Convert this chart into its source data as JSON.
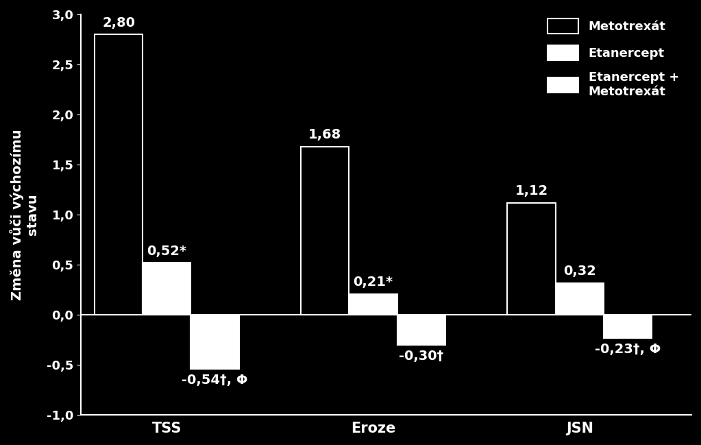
{
  "categories": [
    "TSS",
    "Eroze",
    "JSN"
  ],
  "metotrexat": [
    2.8,
    1.68,
    1.12
  ],
  "etanercept": [
    0.52,
    0.21,
    0.32
  ],
  "etanercept_plus": [
    -0.54,
    -0.3,
    -0.23
  ],
  "metotrexat_labels": [
    "2,80",
    "1,68",
    "1,12"
  ],
  "etanercept_labels": [
    "0,52*",
    "0,21*",
    "0,32"
  ],
  "etanercept_plus_labels": [
    "-0,54†, Φ",
    "-0,30†",
    "-0,23†, Φ"
  ],
  "ylabel": "Změna vůči výchozímu\nstavu",
  "ylim": [
    -1.0,
    3.0
  ],
  "yticks": [
    -1.0,
    -0.5,
    0.0,
    0.5,
    1.0,
    1.5,
    2.0,
    2.5,
    3.0
  ],
  "ytick_labels": [
    "-1,0",
    "-0,5",
    "0,0",
    "0,5",
    "1,0",
    "1,5",
    "2,0",
    "2,5",
    "3,0"
  ],
  "background_color": "#000000",
  "bar_width": 0.28,
  "metotrexat_color": "#000000",
  "metotrexat_edgecolor": "#ffffff",
  "etanercept_color": "#ffffff",
  "etanercept_edgecolor": "#ffffff",
  "etanercept_plus_color": "#ffffff",
  "etanercept_plus_edgecolor": "#ffffff",
  "text_color": "#ffffff",
  "legend_labels": [
    "Metotrexát",
    "Etanercept",
    "Etanercept +\nMetotrexát"
  ],
  "legend_facecolors": [
    "#000000",
    "#ffffff",
    "#ffffff"
  ],
  "legend_edgecolors": [
    "#ffffff",
    "#ffffff",
    "#ffffff"
  ],
  "font_size_labels": 15,
  "font_size_ticks": 13,
  "font_size_ylabel": 14,
  "font_size_legend": 13,
  "font_size_bar_labels": 14,
  "group_positions": [
    0.5,
    1.7,
    2.9
  ],
  "xlim": [
    0.0,
    3.55
  ]
}
